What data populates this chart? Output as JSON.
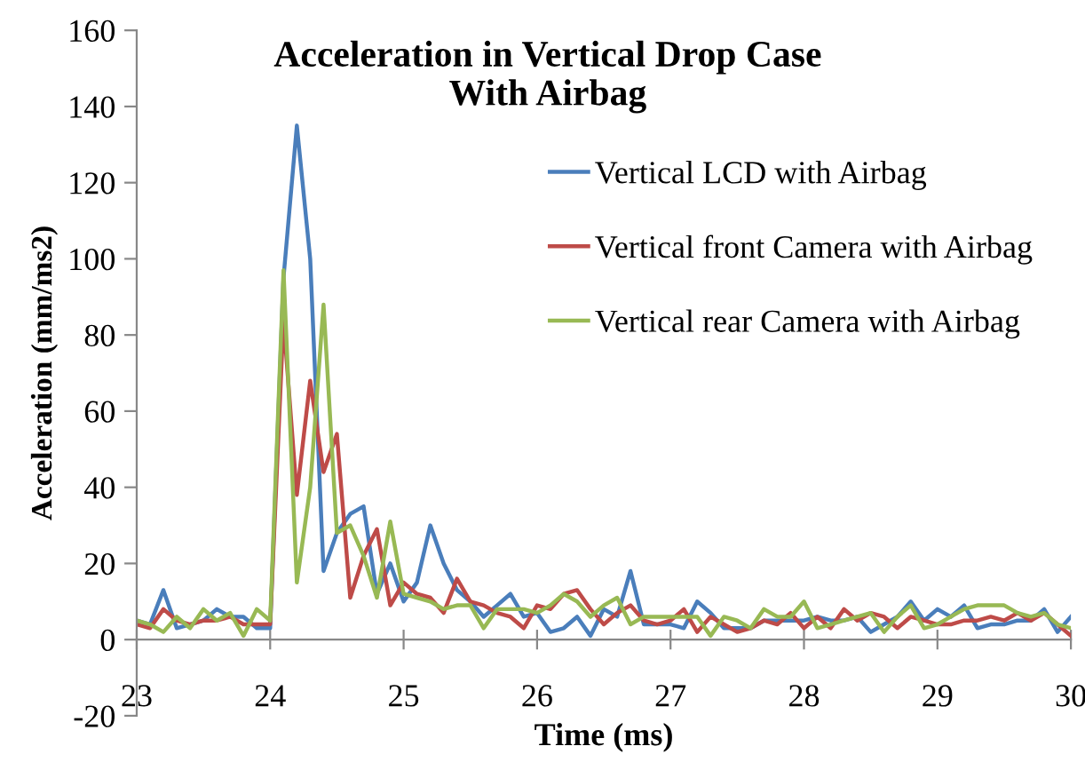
{
  "chart_data": {
    "type": "line",
    "title": "Acceleration in Vertical Drop Case\nWith Airbag",
    "xlabel": "Time (ms)",
    "ylabel": "Acceleration (mm/ms2)",
    "x": [
      23.0,
      23.1,
      23.2,
      23.3,
      23.4,
      23.5,
      23.6,
      23.7,
      23.8,
      23.9,
      24.0,
      24.1,
      24.2,
      24.3,
      24.4,
      24.5,
      24.6,
      24.7,
      24.8,
      24.9,
      25.0,
      25.1,
      25.2,
      25.3,
      25.4,
      25.5,
      25.6,
      25.7,
      25.8,
      25.9,
      26.0,
      26.1,
      26.2,
      26.3,
      26.4,
      26.5,
      26.6,
      26.7,
      26.8,
      26.9,
      27.0,
      27.1,
      27.2,
      27.3,
      27.4,
      27.5,
      27.6,
      27.7,
      27.8,
      27.9,
      28.0,
      28.1,
      28.2,
      28.3,
      28.4,
      28.5,
      28.6,
      28.7,
      28.8,
      28.9,
      29.0,
      29.1,
      29.2,
      29.3,
      29.4,
      29.5,
      29.6,
      29.7,
      29.8,
      29.9,
      30.0
    ],
    "series": [
      {
        "name": "Vertical LCD with Airbag",
        "color": "#4a7ebb",
        "values": [
          5,
          4,
          13,
          3,
          4,
          5,
          8,
          6,
          6,
          3,
          3,
          95,
          135,
          100,
          18,
          28,
          33,
          35,
          12,
          20,
          10,
          15,
          30,
          20,
          13,
          10,
          6,
          9,
          12,
          6,
          7,
          2,
          3,
          6,
          1,
          8,
          6,
          18,
          4,
          4,
          4,
          3,
          10,
          7,
          3,
          3,
          3,
          5,
          5,
          5,
          5,
          6,
          5,
          5,
          6,
          2,
          4,
          6,
          10,
          5,
          8,
          6,
          9,
          3,
          4,
          4,
          5,
          5,
          8,
          2,
          6
        ]
      },
      {
        "name": "Vertical front Camera with Airbag",
        "color": "#be4b48",
        "values": [
          4,
          3,
          8,
          5,
          4,
          5,
          5,
          6,
          4,
          4,
          4,
          84,
          38,
          68,
          44,
          54,
          11,
          22,
          29,
          9,
          15,
          12,
          11,
          7,
          16,
          10,
          9,
          7,
          6,
          3,
          9,
          8,
          12,
          13,
          8,
          4,
          7,
          9,
          5,
          4,
          5,
          8,
          2,
          6,
          4,
          2,
          3,
          5,
          4,
          7,
          3,
          6,
          3,
          8,
          5,
          7,
          6,
          3,
          6,
          5,
          4,
          4,
          5,
          5,
          6,
          5,
          7,
          5,
          7,
          4,
          1
        ]
      },
      {
        "name": "Vertical rear Camera with Airbag",
        "color": "#98b954",
        "values": [
          5,
          4,
          2,
          6,
          3,
          8,
          5,
          7,
          1,
          8,
          5,
          97,
          15,
          40,
          88,
          28,
          30,
          22,
          11,
          31,
          12,
          11,
          10,
          8,
          9,
          9,
          3,
          8,
          8,
          8,
          7,
          9,
          12,
          10,
          6,
          9,
          11,
          4,
          6,
          6,
          6,
          6,
          6,
          1,
          6,
          5,
          3,
          8,
          6,
          6,
          10,
          3,
          4,
          5,
          6,
          7,
          2,
          6,
          9,
          3,
          4,
          6,
          8,
          9,
          9,
          9,
          7,
          6,
          7,
          4,
          3
        ]
      }
    ],
    "xlim": [
      23,
      30
    ],
    "xticks": [
      23,
      24,
      25,
      26,
      27,
      28,
      29,
      30
    ],
    "ylim": [
      -20,
      160
    ],
    "yticks": [
      -20,
      0,
      20,
      40,
      60,
      80,
      100,
      120,
      140,
      160
    ],
    "grid": false,
    "legend": "right",
    "marker": "none",
    "line_style": "solid"
  }
}
